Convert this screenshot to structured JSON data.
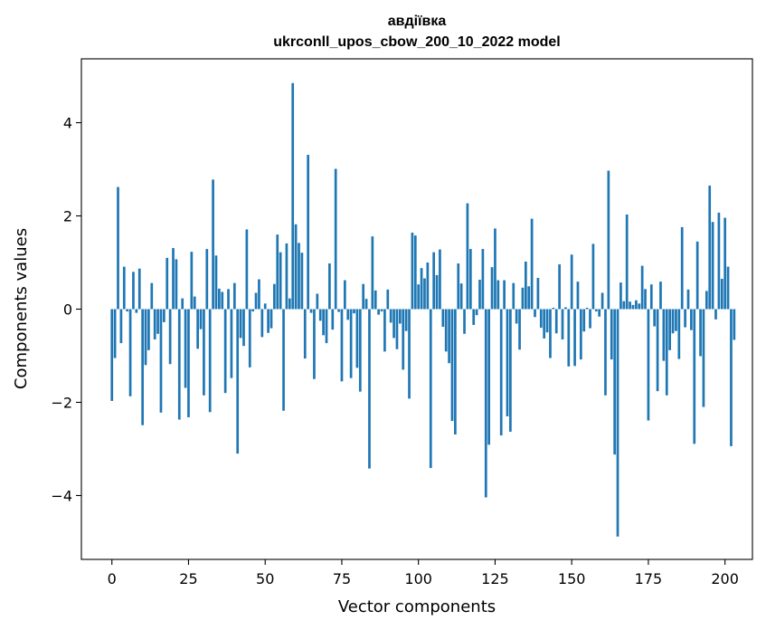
{
  "chart_data": {
    "type": "bar",
    "title_line1": "авдіївка",
    "title_line2": "ukrconll_upos_cbow_200_10_2022 model",
    "xlabel": "Vector components",
    "ylabel": "Components values",
    "xlim": [
      -9.95,
      208.95
    ],
    "ylim": [
      -5.37,
      5.37
    ],
    "xticks": [
      0,
      25,
      50,
      75,
      100,
      125,
      150,
      175,
      200
    ],
    "yticks": [
      -4,
      -2,
      0,
      2,
      4
    ],
    "grid": false,
    "bar_color": "#1f77b4",
    "values": [
      -1.97,
      -1.05,
      2.62,
      -0.73,
      0.91,
      -0.05,
      -1.87,
      0.8,
      -0.08,
      0.87,
      -2.49,
      -1.2,
      -0.88,
      0.56,
      -0.65,
      -0.53,
      -2.22,
      -0.28,
      1.1,
      -1.18,
      1.31,
      1.07,
      -2.37,
      0.23,
      -1.69,
      -2.32,
      1.23,
      0.27,
      -0.85,
      -0.43,
      -1.85,
      1.29,
      -2.21,
      2.78,
      1.15,
      0.44,
      0.37,
      -1.8,
      0.43,
      -1.48,
      0.56,
      -3.1,
      -0.62,
      -0.79,
      1.71,
      -1.25,
      -0.05,
      0.35,
      0.64,
      -0.6,
      0.12,
      -0.51,
      -0.41,
      0.54,
      1.6,
      1.22,
      -2.18,
      1.41,
      0.23,
      4.85,
      1.82,
      1.42,
      1.21,
      -1.06,
      3.31,
      -0.08,
      -1.5,
      0.33,
      -0.25,
      -0.56,
      -0.73,
      0.98,
      -0.44,
      3.01,
      -0.06,
      -1.55,
      0.62,
      -0.23,
      -1.48,
      -0.09,
      -1.26,
      -1.77,
      0.54,
      0.22,
      -3.42,
      1.56,
      0.4,
      -0.12,
      -0.05,
      -0.91,
      0.42,
      -0.29,
      -0.62,
      -0.86,
      -0.31,
      -1.3,
      -0.47,
      -1.92,
      1.64,
      1.58,
      0.53,
      0.88,
      0.66,
      1.0,
      -3.41,
      1.22,
      0.73,
      1.28,
      -0.38,
      -0.91,
      -1.16,
      -2.4,
      -2.69,
      0.98,
      0.55,
      -0.53,
      2.27,
      1.29,
      -0.34,
      -0.13,
      0.63,
      1.29,
      -4.04,
      -2.91,
      0.9,
      1.73,
      0.62,
      -2.71,
      0.62,
      -2.3,
      -2.63,
      0.56,
      -0.31,
      -0.87,
      0.46,
      1.02,
      0.49,
      1.94,
      -0.17,
      0.67,
      -0.4,
      -0.63,
      -0.5,
      -1.05,
      0.03,
      -0.52,
      0.96,
      -0.65,
      0.04,
      -1.23,
      1.17,
      -1.22,
      0.59,
      -1.08,
      -0.48,
      0.03,
      -0.41,
      1.4,
      -0.05,
      -0.16,
      0.35,
      -1.85,
      2.97,
      -1.08,
      -3.12,
      -4.88,
      0.57,
      0.17,
      2.03,
      0.16,
      0.09,
      0.19,
      0.12,
      0.93,
      0.43,
      -2.39,
      0.53,
      -0.37,
      -1.76,
      0.59,
      -1.11,
      -1.85,
      -0.88,
      -0.52,
      -0.47,
      -1.07,
      1.76,
      -0.39,
      0.42,
      -0.45,
      -2.89,
      1.45,
      -1.01,
      -2.1,
      0.39,
      2.65,
      1.87,
      -0.22,
      2.07,
      0.65,
      1.96,
      0.91,
      -2.94,
      -0.66
    ]
  }
}
